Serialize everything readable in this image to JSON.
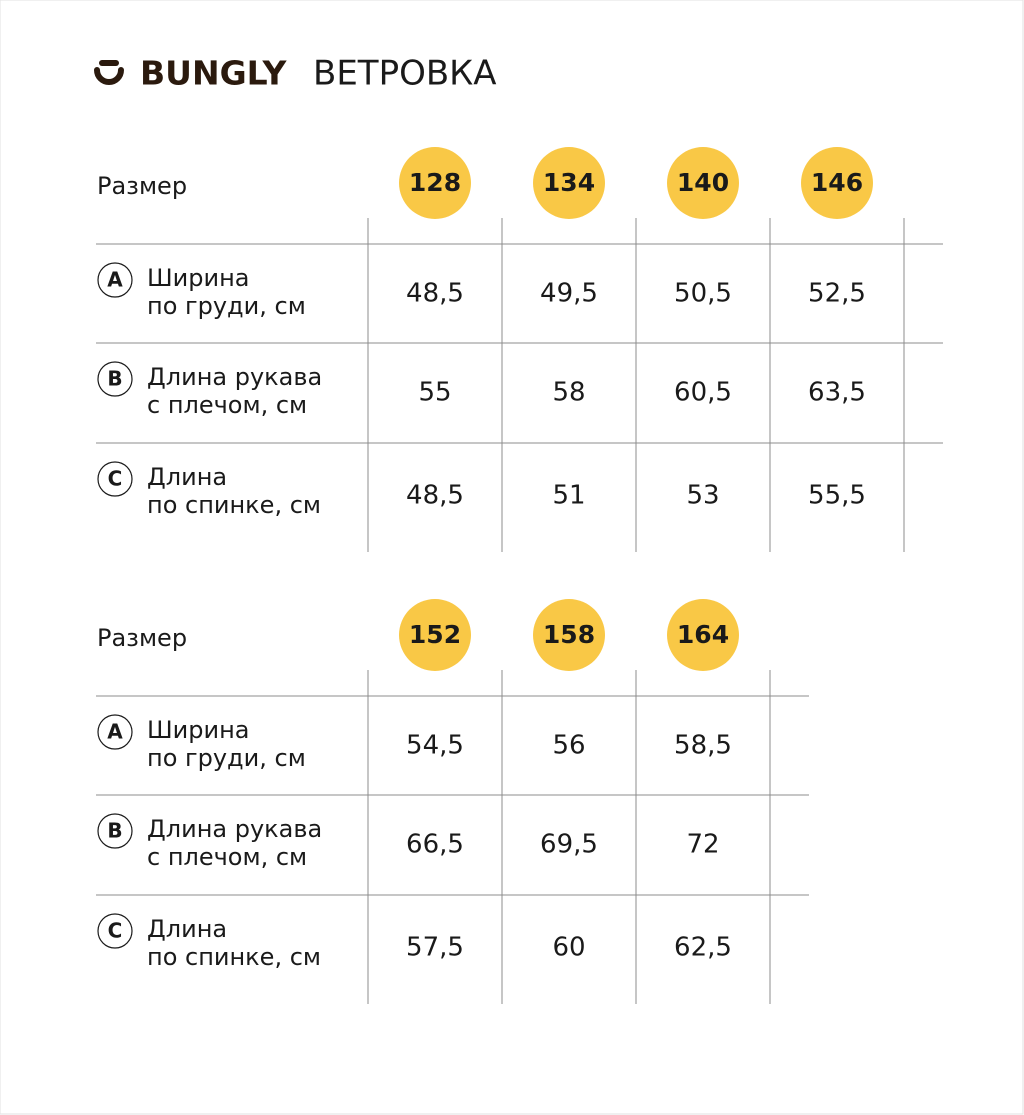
{
  "header": {
    "brand": "BUNGLY",
    "title": "ВЕТРОВКА"
  },
  "tables": [
    {
      "size_label": "Размер",
      "sizes": [
        "128",
        "134",
        "140",
        "146"
      ],
      "rows": [
        {
          "letter": "A",
          "label": [
            "Ширина",
            "по груди, см"
          ],
          "values": [
            "48,5",
            "49,5",
            "50,5",
            "52,5"
          ]
        },
        {
          "letter": "B",
          "label": [
            "Длина рукава",
            "с плечом, см"
          ],
          "values": [
            "55",
            "58",
            "60,5",
            "63,5"
          ]
        },
        {
          "letter": "C",
          "label": [
            "Длина",
            "по спинке, см"
          ],
          "values": [
            "48,5",
            "51",
            "53",
            "55,5"
          ]
        }
      ]
    },
    {
      "size_label": "Размер",
      "sizes": [
        "152",
        "158",
        "164"
      ],
      "rows": [
        {
          "letter": "A",
          "label": [
            "Ширина",
            "по груди, см"
          ],
          "values": [
            "54,5",
            "56",
            "58,5"
          ]
        },
        {
          "letter": "B",
          "label": [
            "Длина рукава",
            "с плечом, см"
          ],
          "values": [
            "66,5",
            "69,5",
            "72"
          ]
        },
        {
          "letter": "C",
          "label": [
            "Длина",
            "по спинке, см"
          ],
          "values": [
            "57,5",
            "60",
            "62,5"
          ]
        }
      ]
    }
  ]
}
